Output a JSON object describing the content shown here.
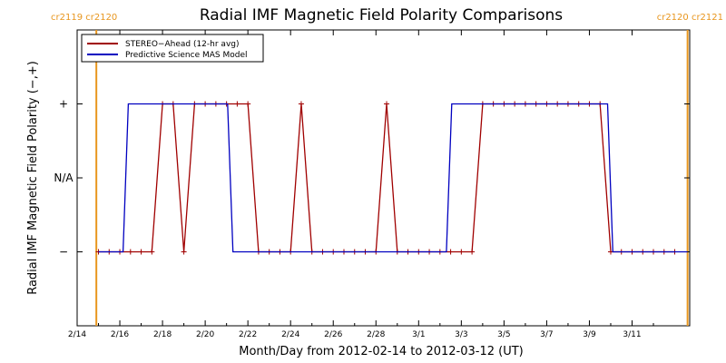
{
  "chart_data": {
    "type": "line",
    "title": "Radial IMF Magnetic Field Polarity Comparisons",
    "xlabel": "Month/Day from 2012-02-14 to 2012-03-12 (UT)",
    "ylabel": "Radial IMF Magnetic Field Polarity (−,+)",
    "x_tick_labels": [
      "2/14",
      "2/16",
      "2/18",
      "2/20",
      "2/22",
      "2/24",
      "2/26",
      "2/28",
      "3/1",
      "3/3",
      "3/5",
      "3/7",
      "3/9",
      "3/11"
    ],
    "x_tick_days": [
      0,
      2,
      4,
      6,
      8,
      10,
      12,
      14,
      16,
      18,
      20,
      22,
      24,
      26
    ],
    "xlim_days": [
      0,
      28.7
    ],
    "y_tick_labels": [
      "−",
      "N/A",
      "+"
    ],
    "y_tick_values": [
      -1,
      0,
      1
    ],
    "ylim": [
      -2,
      2
    ],
    "carrington_rotations": [
      {
        "labels": [
          "cr2119",
          "cr2120"
        ],
        "day": 0.9,
        "side": "left"
      },
      {
        "labels": [
          "cr2120",
          "cr2121"
        ],
        "day": 28.6,
        "side": "right"
      }
    ],
    "series": [
      {
        "name": "STEREO−Ahead (12-hr avg)",
        "color": "#a00000",
        "markers": true,
        "x_days": [
          1,
          1.5,
          2,
          2.5,
          3,
          3.5,
          4,
          4.5,
          5,
          5.5,
          6,
          6.5,
          7,
          7.5,
          8,
          8.5,
          9,
          9.5,
          10,
          10.5,
          11,
          11.5,
          12,
          12.5,
          13,
          13.5,
          14,
          14.5,
          15,
          15.5,
          16,
          16.5,
          17,
          17.5,
          18,
          18.5,
          19,
          19.5,
          20,
          20.5,
          21,
          21.5,
          22,
          22.5,
          23,
          23.5,
          24,
          24.5,
          25,
          25.5,
          26,
          26.5,
          27,
          27.5,
          28
        ],
        "values": [
          -1,
          -1,
          -1,
          -1,
          -1,
          -1,
          1,
          1,
          -1,
          1,
          1,
          1,
          1,
          1,
          1,
          -1,
          -1,
          -1,
          -1,
          1,
          -1,
          -1,
          -1,
          -1,
          -1,
          -1,
          -1,
          1,
          -1,
          -1,
          -1,
          -1,
          -1,
          -1,
          -1,
          -1,
          1,
          1,
          1,
          1,
          1,
          1,
          1,
          1,
          1,
          1,
          1,
          1,
          -1,
          -1,
          -1,
          -1,
          -1,
          -1,
          -1
        ]
      },
      {
        "name": "Predictive Science MAS Model",
        "color": "#0000c0",
        "markers": false,
        "x_days": [
          1,
          2.15,
          2.4,
          7.05,
          7.3,
          17.3,
          17.55,
          24.85,
          25.1,
          28.6
        ],
        "values": [
          -1,
          -1,
          1,
          1,
          -1,
          -1,
          1,
          1,
          -1,
          -1
        ]
      }
    ]
  }
}
